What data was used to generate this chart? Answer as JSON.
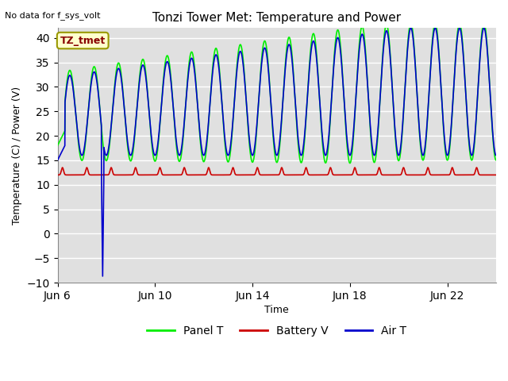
{
  "title": "Tonzi Tower Met: Temperature and Power",
  "xlabel": "Time",
  "ylabel": "Temperature (C) / Power (V)",
  "ylim": [
    -10,
    42
  ],
  "xlim_days": [
    6,
    24
  ],
  "yticks": [
    -10,
    -5,
    0,
    5,
    10,
    15,
    20,
    25,
    30,
    35,
    40
  ],
  "xtick_labels": [
    "Jun 6",
    "Jun 10",
    "Jun 14",
    "Jun 18",
    "Jun 22"
  ],
  "xtick_positions": [
    6,
    10,
    14,
    18,
    22
  ],
  "bg_color": "#e0e0e0",
  "fig_bg_color": "#ffffff",
  "grid_color": "#ffffff",
  "panel_T_color": "#00ee00",
  "battery_V_color": "#cc0000",
  "air_T_color": "#0000cc",
  "annotation_text": "No data for f_sys_volt",
  "legend_label_panel": "Panel T",
  "legend_label_battery": "Battery V",
  "legend_label_air": "Air T",
  "tz_tmet_label": "TZ_tmet"
}
